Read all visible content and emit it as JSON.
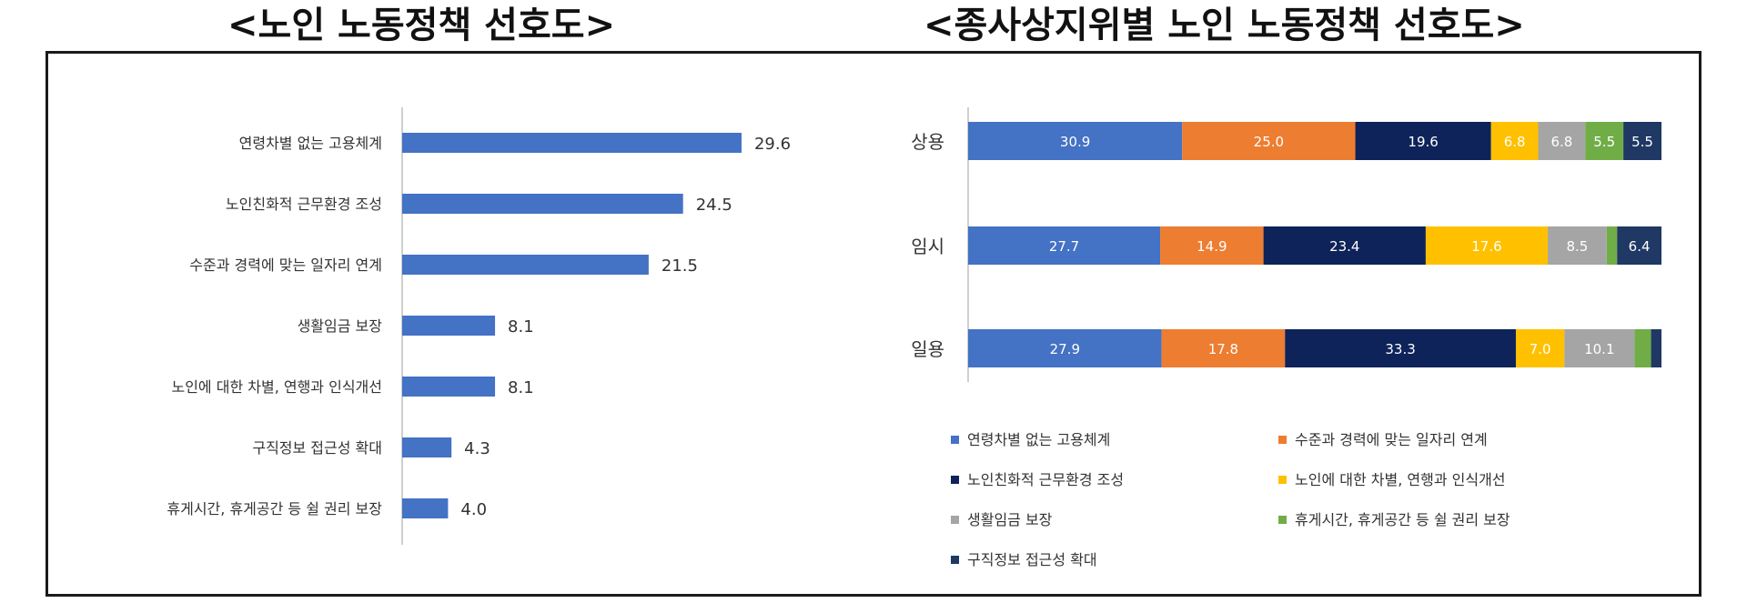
{
  "titles": {
    "left": "<노인 노동정책 선호도>",
    "right": "<종사상지위별 노인 노동정책 선호도>"
  },
  "colors": {
    "bar": "#4472C4",
    "blue": "#4472C4",
    "orange": "#ED7D31",
    "navy": "#0E2359",
    "yellow": "#FFC000",
    "gray": "#A5A5A5",
    "green": "#70AD47",
    "darkblue": "#1F3864",
    "axis": "#bfbfbf"
  },
  "chart_data": [
    {
      "type": "bar",
      "orientation": "horizontal",
      "categories": [
        "연령차별 없는 고용체계",
        "노인친화적 근무환경 조성",
        "수준과 경력에 맞는 일자리 연계",
        "생활임금 보장",
        "노인에 대한 차별, 연행과 인식개선",
        "구직정보 접근성 확대",
        "휴게시간, 휴게공간 등 쉴 권리 보장"
      ],
      "values": [
        29.6,
        24.5,
        21.5,
        8.1,
        8.1,
        4.3,
        4.0
      ],
      "data_labels": [
        "29.6",
        "24.5",
        "21.5",
        "8.1",
        "8.1",
        "4.3",
        "4.0"
      ],
      "xlim": [
        0,
        35
      ],
      "grid": false
    },
    {
      "type": "bar",
      "orientation": "horizontal",
      "stacked": true,
      "categories": [
        "상용",
        "임시",
        "일용"
      ],
      "series": [
        {
          "name": "연령차별 없는 고용체계",
          "color": "#4472C4",
          "values": [
            30.9,
            27.7,
            27.9
          ],
          "labels": [
            "30.9",
            "27.7",
            "27.9"
          ]
        },
        {
          "name": "수준과 경력에 맞는 일자리 연계",
          "color": "#ED7D31",
          "values": [
            25.0,
            14.9,
            17.8
          ],
          "labels": [
            "25.0",
            "14.9",
            "17.8"
          ]
        },
        {
          "name": "노인친화적 근무환경 조성",
          "color": "#0E2359",
          "values": [
            19.6,
            23.4,
            33.3
          ],
          "labels": [
            "19.6",
            "23.4",
            "33.3"
          ]
        },
        {
          "name": "노인에 대한 차별, 연행과 인식개선",
          "color": "#FFC000",
          "values": [
            6.8,
            17.6,
            7.0
          ],
          "labels": [
            "6.8",
            "17.6",
            "7.0"
          ]
        },
        {
          "name": "생활임금 보장",
          "color": "#A5A5A5",
          "values": [
            6.8,
            8.5,
            10.1
          ],
          "labels": [
            "6.8",
            "8.5",
            "10.1"
          ]
        },
        {
          "name": "휴게시간, 휴게공간 등 쉴 권리 보장",
          "color": "#70AD47",
          "values": [
            5.5,
            1.5,
            2.4
          ],
          "labels": [
            "5.5",
            "",
            ""
          ]
        },
        {
          "name": "구직정보 접근성 확대",
          "color": "#1F3864",
          "values": [
            5.5,
            6.4,
            1.5
          ],
          "labels": [
            "5.5",
            "6.4",
            ""
          ]
        }
      ],
      "legend": {
        "position": "bottom",
        "order": [
          0,
          1,
          2,
          3,
          4,
          5,
          6
        ]
      },
      "xlim": [
        0,
        100
      ],
      "grid": false
    }
  ]
}
